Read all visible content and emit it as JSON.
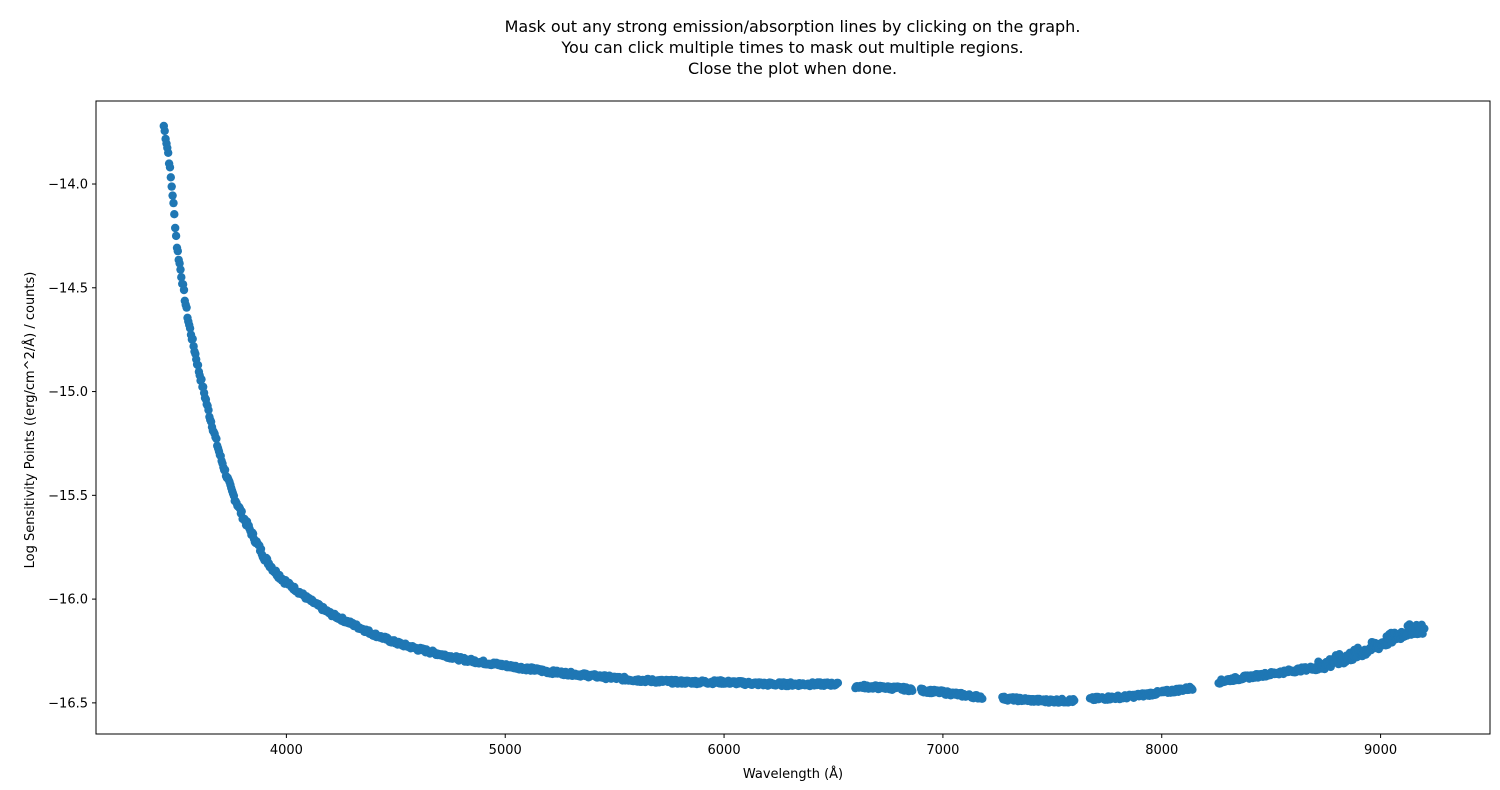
{
  "chart_data": {
    "type": "scatter",
    "title_lines": [
      "Mask out any strong emission/absorption lines by clicking on the graph.",
      "You can click multiple times to mask out multiple regions.",
      "Close the plot when done."
    ],
    "xlabel": "Wavelength (Å)",
    "ylabel": "Log Sensitivity Points ((erg/cm^2/Å) / counts)",
    "xlim": [
      3130,
      9500
    ],
    "ylim": [
      -16.65,
      -13.6
    ],
    "x_ticks": [
      4000,
      5000,
      6000,
      7000,
      8000,
      9000
    ],
    "x_tick_labels": [
      "4000",
      "5000",
      "6000",
      "7000",
      "8000",
      "9000"
    ],
    "y_ticks": [
      -14.0,
      -14.5,
      -15.0,
      -15.5,
      -16.0,
      -16.5
    ],
    "y_tick_labels": [
      "−14.0",
      "−14.5",
      "−15.0",
      "−15.5",
      "−16.0",
      "−16.5"
    ],
    "grid": false,
    "marker_color": "#1f77b4",
    "curve_anchors": [
      [
        3440,
        -13.72
      ],
      [
        3460,
        -13.85
      ],
      [
        3480,
        -14.05
      ],
      [
        3500,
        -14.3
      ],
      [
        3550,
        -14.65
      ],
      [
        3600,
        -14.9
      ],
      [
        3650,
        -15.12
      ],
      [
        3700,
        -15.32
      ],
      [
        3750,
        -15.48
      ],
      [
        3800,
        -15.6
      ],
      [
        3850,
        -15.7
      ],
      [
        3900,
        -15.8
      ],
      [
        3950,
        -15.87
      ],
      [
        4000,
        -15.92
      ],
      [
        4100,
        -16.0
      ],
      [
        4200,
        -16.07
      ],
      [
        4300,
        -16.12
      ],
      [
        4400,
        -16.17
      ],
      [
        4500,
        -16.21
      ],
      [
        4600,
        -16.24
      ],
      [
        4800,
        -16.29
      ],
      [
        5000,
        -16.32
      ],
      [
        5200,
        -16.35
      ],
      [
        5400,
        -16.37
      ],
      [
        5600,
        -16.39
      ],
      [
        5800,
        -16.4
      ],
      [
        6000,
        -16.4
      ],
      [
        6200,
        -16.41
      ],
      [
        6400,
        -16.41
      ],
      [
        6500,
        -16.41
      ],
      [
        6600,
        -16.42
      ],
      [
        6800,
        -16.43
      ],
      [
        7000,
        -16.45
      ],
      [
        7150,
        -16.47
      ],
      [
        7300,
        -16.48
      ],
      [
        7450,
        -16.49
      ],
      [
        7600,
        -16.49
      ],
      [
        7700,
        -16.48
      ],
      [
        7850,
        -16.47
      ],
      [
        8000,
        -16.45
      ],
      [
        8130,
        -16.43
      ],
      [
        8300,
        -16.39
      ],
      [
        8500,
        -16.36
      ],
      [
        8700,
        -16.33
      ],
      [
        8850,
        -16.28
      ],
      [
        8950,
        -16.24
      ],
      [
        9050,
        -16.19
      ],
      [
        9150,
        -16.14
      ],
      [
        9200,
        -16.15
      ]
    ],
    "gaps": [
      [
        6520,
        6600
      ],
      [
        6860,
        6900
      ],
      [
        7180,
        7270
      ],
      [
        7600,
        7670
      ],
      [
        8140,
        8260
      ]
    ],
    "x_start": 3440,
    "x_end": 9200
  }
}
